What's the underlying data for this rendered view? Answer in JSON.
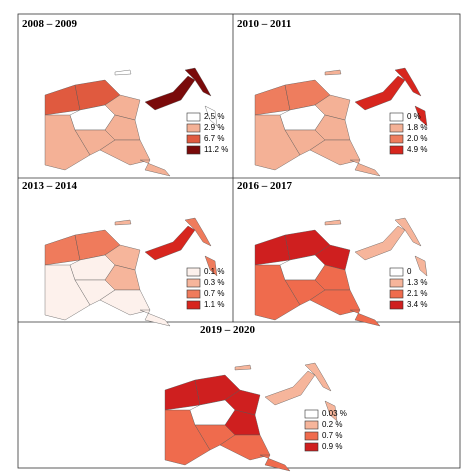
{
  "panels": [
    {
      "title": "2008 – 2009",
      "legend": [
        {
          "label": "2.5 %",
          "color": "#ffffff"
        },
        {
          "label": "2.9 %",
          "color": "#f4b196"
        },
        {
          "label": "6.7 %",
          "color": "#e05a3f"
        },
        {
          "label": "11.2 %",
          "color": "#7a0a0a"
        }
      ]
    },
    {
      "title": "2010 – 2011",
      "legend": [
        {
          "label": "0 %",
          "color": "#ffffff"
        },
        {
          "label": "1.8 %",
          "color": "#f4b196"
        },
        {
          "label": "2.0 %",
          "color": "#ee7d5e"
        },
        {
          "label": "4.9 %",
          "color": "#d7261e"
        }
      ]
    },
    {
      "title": "2013 – 2014",
      "legend": [
        {
          "label": "0.1 %",
          "color": "#fdf1ec"
        },
        {
          "label": "0.3 %",
          "color": "#f6b59b"
        },
        {
          "label": "0.7 %",
          "color": "#ef7b5c"
        },
        {
          "label": "1.1 %",
          "color": "#d7261e"
        }
      ]
    },
    {
      "title": "2016 – 2017",
      "legend": [
        {
          "label": "0",
          "color": "#ffffff"
        },
        {
          "label": "1.3 %",
          "color": "#f6b59b"
        },
        {
          "label": "2.1 %",
          "color": "#ef6b4d"
        },
        {
          "label": "3.4 %",
          "color": "#cf1f1f"
        }
      ]
    },
    {
      "title": "2019 – 2020",
      "legend": [
        {
          "label": "0.03 %",
          "color": "#ffffff"
        },
        {
          "label": "0.2 %",
          "color": "#f6b59b"
        },
        {
          "label": "0.7 %",
          "color": "#ef6b4d"
        },
        {
          "label": "0.9 %",
          "color": "#cf1f1f"
        }
      ]
    }
  ]
}
